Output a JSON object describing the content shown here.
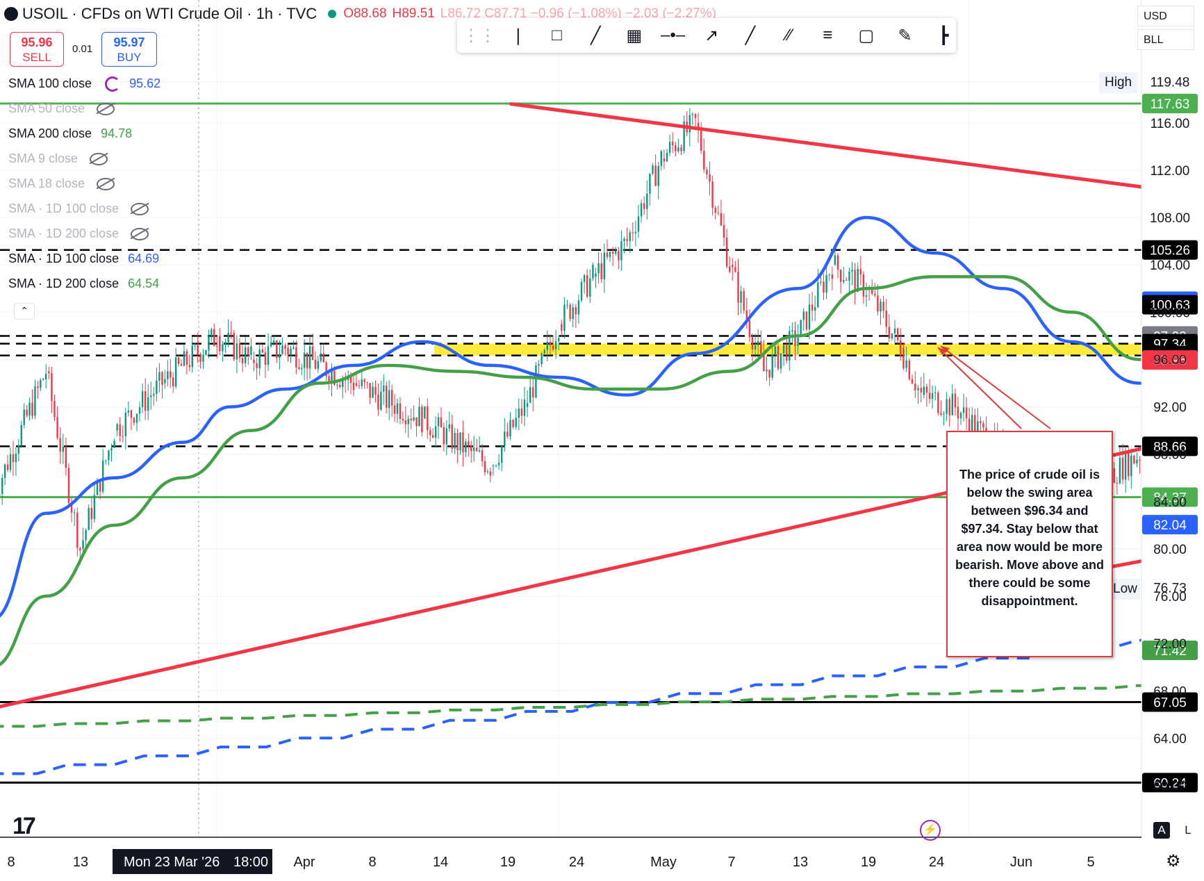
{
  "header": {
    "symbol": "USOIL · CFDs on WTI Crude Oil · 1h · TVC",
    "ohlc_open": "O88.68",
    "ohlc_high": "H89.51",
    "ohlc_rest": "L86.72  C87.71  −0.96 (−1.08%)  −2.03 (−2.27%)"
  },
  "trade": {
    "sell_price": "95.96",
    "sell_label": "SELL",
    "spread": "0.01",
    "buy_price": "95.97",
    "buy_label": "BUY"
  },
  "legend": [
    {
      "label": "SMA 100 close",
      "value": "95.62",
      "color": "#2962ff",
      "hidden": false,
      "icon": "reload-icon"
    },
    {
      "label": "SMA 50 close",
      "value": "",
      "color": "",
      "hidden": true,
      "icon": "eye-off-icon"
    },
    {
      "label": "SMA 200 close",
      "value": "94.78",
      "color": "#43a047",
      "hidden": false,
      "icon": ""
    },
    {
      "label": "SMA 9 close",
      "value": "",
      "color": "",
      "hidden": true,
      "icon": "eye-off-icon"
    },
    {
      "label": "SMA 18 close",
      "value": "",
      "color": "",
      "hidden": true,
      "icon": "eye-off-icon"
    },
    {
      "label": "SMA · 1D 100 close",
      "value": "",
      "color": "",
      "hidden": true,
      "icon": "eye-off-icon"
    },
    {
      "label": "SMA · 1D 200 close",
      "value": "",
      "color": "",
      "hidden": true,
      "icon": "eye-off-icon"
    },
    {
      "label": "SMA · 1D 100 close",
      "value": "64.69",
      "color": "#2962ff",
      "hidden": false,
      "icon": ""
    },
    {
      "label": "SMA · 1D 200 close",
      "value": "64.54",
      "color": "#43a047",
      "hidden": false,
      "icon": ""
    }
  ],
  "toolbar": {
    "icons": [
      "drag-handle-icon",
      "cursor-line-icon",
      "callout-icon",
      "trend-line-icon",
      "crosshair-box-icon",
      "horizontal-ray-icon",
      "arrow-icon",
      "extended-line-icon",
      "parallel-channel-icon",
      "fib-retracement-icon",
      "rectangle-icon",
      "brush-icon",
      "anchored-vwap-icon"
    ]
  },
  "currency": {
    "top": "USD",
    "bottom": "BLL"
  },
  "high_label": "High",
  "low_label": "Low",
  "annotation": "The price of crude oil is below the swing area between $96.34 and $97.34.  Stay below that area now would be more bearish. Move above and there could be some disappointment.",
  "time_labels": [
    "8",
    "13",
    "Mon 23 Mar '26",
    "18:00",
    "Apr",
    "8",
    "14",
    "19",
    "24",
    "May",
    "7",
    "13",
    "19",
    "24",
    "Jun",
    "5"
  ],
  "colors": {
    "up": "#089981",
    "down": "#f23645",
    "sma100": "#2962ff",
    "sma200": "#43a047",
    "trendline": "#f23645",
    "swing_zone": "#ffeb3b",
    "green_level": "#4caf50",
    "annotation_border": "#e03a3a"
  },
  "chart_data": {
    "type": "line",
    "title": "USOIL · CFDs on WTI Crude Oil · 1h · TVC",
    "price_axis_ticks": [
      119.48,
      116.0,
      112.0,
      108.0,
      104.0,
      100.0,
      96.0,
      92.0,
      88.0,
      84.0,
      80.0,
      76.0,
      72.0,
      68.0,
      64.0,
      60.0
    ],
    "ylim": [
      58.5,
      124.5
    ],
    "price_labels": [
      {
        "value": "119.48",
        "bg": "#ffffff",
        "fg": "#131722"
      },
      {
        "value": "117.63",
        "bg": "#4caf50",
        "fg": "#ffffff"
      },
      {
        "value": "116.00",
        "bg": "#ffffff",
        "fg": "#131722"
      },
      {
        "value": "112.00",
        "bg": "#ffffff",
        "fg": "#131722"
      },
      {
        "value": "108.00",
        "bg": "#ffffff",
        "fg": "#131722"
      },
      {
        "value": "105.26",
        "bg": "#000000",
        "fg": "#ffffff"
      },
      {
        "value": "100.93",
        "bg": "#2962ff",
        "fg": "#ffffff"
      },
      {
        "value": "100.63",
        "bg": "#000000",
        "fg": "#ffffff"
      },
      {
        "value": "97.99",
        "bg": "#787b86",
        "fg": "#ffffff"
      },
      {
        "value": "97.34",
        "bg": "#000000",
        "fg": "#ffffff"
      },
      {
        "value": "96.34",
        "bg": "#000000",
        "fg": "#ffffff"
      },
      {
        "value": "95.96",
        "bg": "#f23645",
        "fg": "#ffffff"
      },
      {
        "value": "88.66",
        "bg": "#000000",
        "fg": "#ffffff"
      },
      {
        "value": "84.37",
        "bg": "#4caf50",
        "fg": "#ffffff"
      },
      {
        "value": "82.04",
        "bg": "#2962ff",
        "fg": "#ffffff"
      },
      {
        "value": "80.00",
        "bg": "#ffffff",
        "fg": "#131722"
      },
      {
        "value": "76.73",
        "bg": "#ffffff",
        "fg": "#131722"
      },
      {
        "value": "71.42",
        "bg": "#43a047",
        "fg": "#ffffff"
      },
      {
        "value": "67.05",
        "bg": "#000000",
        "fg": "#ffffff"
      },
      {
        "value": "64.00",
        "bg": "#ffffff",
        "fg": "#131722"
      },
      {
        "value": "60.24",
        "bg": "#000000",
        "fg": "#ffffff"
      }
    ],
    "horizontal_levels": [
      {
        "value": 117.63,
        "style": "solid",
        "color": "#4caf50"
      },
      {
        "value": 105.26,
        "style": "dashed",
        "color": "#000000"
      },
      {
        "value": 97.99,
        "style": "dashed",
        "color": "#000000"
      },
      {
        "value": 97.34,
        "style": "dashed",
        "color": "#000000"
      },
      {
        "value": 96.34,
        "style": "dashed",
        "color": "#000000"
      },
      {
        "value": 88.66,
        "style": "dashed",
        "color": "#000000"
      },
      {
        "value": 84.37,
        "style": "solid",
        "color": "#4caf50"
      },
      {
        "value": 67.05,
        "style": "solid",
        "color": "#000000"
      },
      {
        "value": 60.24,
        "style": "solid",
        "color": "#000000"
      }
    ],
    "swing_zone": {
      "low": 96.34,
      "high": 97.34
    },
    "trendlines": [
      {
        "from": [
          0.3,
          117.6
        ],
        "to": [
          24.5,
          99.2
        ]
      },
      {
        "from": [
          -7.3,
          66.5
        ],
        "to": [
          24.5,
          108.0
        ]
      },
      {
        "from": [
          9.0,
          78.4
        ],
        "to": [
          24.5,
          95.0
        ]
      }
    ],
    "series": [
      {
        "name": "SMA 100 close",
        "kind": "sma",
        "color": "#2962ff",
        "x": [
          -7.3,
          -6.5,
          -5.5,
          -4.5,
          -3.8,
          -3.0,
          -2.0,
          -1.0,
          0.0,
          1.0,
          2.0,
          3.0,
          4.5,
          5.5,
          6.5,
          7.5,
          8.5,
          9.5,
          10.5,
          11.5,
          12.5,
          13.5,
          14.5,
          15.5,
          16.5,
          17.5,
          18.5,
          19.5,
          20.5,
          21.5,
          22.5,
          23.0,
          23.5,
          24.0
        ],
        "y": [
          74,
          83,
          86,
          89,
          92,
          93.5,
          95.5,
          97.5,
          95.5,
          94.5,
          93.0,
          96.5,
          102,
          108,
          105,
          102,
          97.5,
          94,
          89,
          87,
          89,
          92,
          95,
          99,
          103,
          103,
          98,
          96,
          99,
          100,
          102,
          102.5,
          102,
          100.9
        ]
      },
      {
        "name": "SMA 200 close",
        "kind": "sma",
        "color": "#43a047",
        "x": [
          -7.3,
          -6.5,
          -5.5,
          -4.5,
          -3.5,
          -2.5,
          -1.5,
          -0.5,
          0.5,
          1.5,
          2.5,
          3.5,
          4.5,
          5.5,
          6.5,
          7.5,
          8.5,
          9.5,
          10.5,
          11.5,
          12.5,
          13.5,
          14.5,
          15.5,
          16.5,
          17.5,
          18.5,
          19.5,
          20.5,
          21.0,
          22.0,
          23.0,
          23.5,
          24.0
        ],
        "y": [
          70,
          76,
          82,
          86,
          90,
          94,
          95.5,
          95,
          94.5,
          93.5,
          93.5,
          95,
          98,
          102,
          103,
          103,
          100,
          96,
          93,
          92,
          91.5,
          93,
          96,
          99,
          101,
          101,
          100.5,
          99.5,
          100.3,
          99.8,
          99.5,
          100.5,
          100.9,
          100.6
        ]
      },
      {
        "name": "SMA · 1D 100 close",
        "kind": "daily",
        "color": "#2962ff",
        "x": [
          -7.3,
          24.0
        ],
        "y": [
          61.0,
          82.04
        ]
      },
      {
        "name": "SMA · 1D 200 close",
        "kind": "daily",
        "color": "#43a047",
        "x": [
          -7.3,
          24.0
        ],
        "y": [
          65.0,
          71.42
        ]
      },
      {
        "name": "USOIL price",
        "kind": "price",
        "color": "#131722",
        "x": [
          -7.3,
          -6.5,
          -6.0,
          -5.5,
          -4.8,
          -4.0,
          -3.5,
          -3.0,
          -2.0,
          -1.0,
          0.0,
          0.5,
          1.0,
          1.5,
          2.0,
          2.5,
          3.0,
          3.5,
          4.0,
          4.5,
          5.0,
          5.5,
          6.0,
          6.3,
          6.8,
          7.5,
          8.0,
          8.5,
          9.0,
          9.5,
          10.0,
          10.5,
          11.0,
          11.5,
          12.0,
          12.5,
          13.0,
          13.5,
          14.0,
          14.5,
          15.0,
          15.5,
          16.0,
          16.5,
          17.0,
          17.5,
          18.0,
          18.5,
          19.0,
          19.5,
          20.0,
          20.5,
          21.0,
          21.5,
          22.0,
          22.5,
          23.0,
          23.5,
          24.0
        ],
        "y": [
          84,
          95,
          80,
          90,
          94,
          98,
          96,
          97,
          94,
          91,
          87,
          92,
          99,
          103,
          106,
          113,
          116,
          104,
          95,
          98,
          104,
          102,
          97,
          93,
          92,
          88,
          86,
          82,
          86,
          88,
          90,
          93,
          95,
          97,
          96,
          100,
          104,
          109,
          104,
          102,
          100,
          93,
          90,
          95,
          96,
          98,
          97,
          99,
          100,
          102,
          101,
          103,
          102,
          104,
          104,
          103,
          98,
          99,
          96
        ]
      }
    ]
  }
}
